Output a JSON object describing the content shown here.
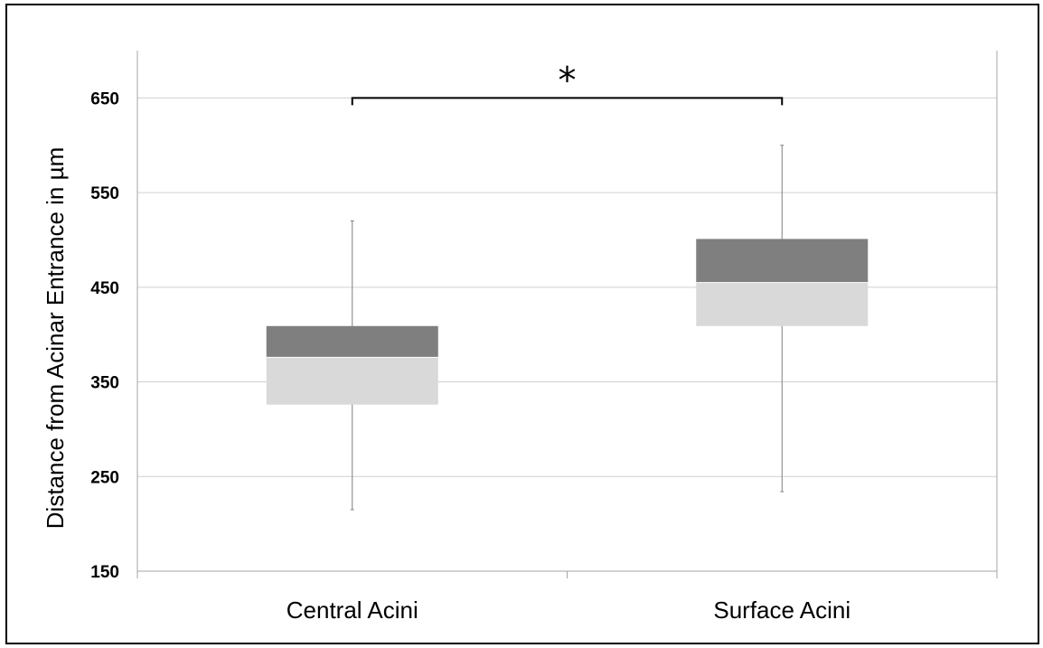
{
  "chart_data": {
    "type": "box",
    "title": "",
    "xlabel": "",
    "ylabel": "Distance from Acinar Entrance in µm",
    "ylim": [
      150,
      700
    ],
    "yticks": [
      150,
      250,
      350,
      450,
      550,
      650
    ],
    "grid": true,
    "categories": [
      "Central Acini",
      "Surface Acini"
    ],
    "boxes": [
      {
        "category": "Central Acini",
        "min": 215,
        "q1": 326,
        "median": 376,
        "q3": 409,
        "max": 520
      },
      {
        "category": "Surface Acini",
        "min": 234,
        "q1": 409,
        "median": 455,
        "q3": 501,
        "max": 600
      }
    ],
    "colors": {
      "lower_box": "#d9d9d9",
      "upper_box": "#7f7f7f",
      "whisker": "#808080",
      "grid": "#d0d0d0",
      "axis": "#a6a6a6"
    },
    "significance": {
      "label": "*",
      "from": "Central Acini",
      "to": "Surface Acini",
      "y": 650
    }
  }
}
